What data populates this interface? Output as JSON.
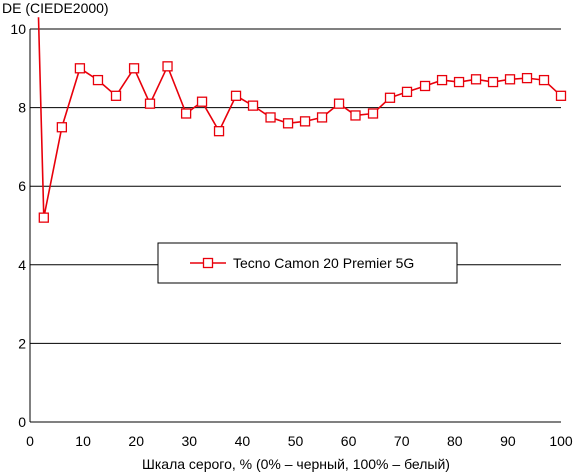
{
  "chart_data": {
    "type": "line",
    "ylabel": "DE (CIEDE2000)",
    "xlabel": "Шкала серого, % (0% – черный, 100% – белый)",
    "xlim": [
      0,
      100
    ],
    "ylim": [
      0,
      10
    ],
    "x_ticks": [
      "0",
      "10",
      "20",
      "30",
      "40",
      "50",
      "60",
      "70",
      "80",
      "90",
      "100"
    ],
    "y_ticks": [
      "0",
      "2",
      "4",
      "6",
      "8",
      "10"
    ],
    "grid": "horizontal",
    "legend_position": "center",
    "series": [
      {
        "name": "Tecno Camon 20 Premier 5G",
        "color": "#e8000b",
        "marker": "square-open",
        "points": [
          [
            1.6,
            10.3
          ],
          [
            2.6,
            5.2
          ],
          [
            6.0,
            7.5
          ],
          [
            9.4,
            9.0
          ],
          [
            12.8,
            8.7
          ],
          [
            16.2,
            8.3
          ],
          [
            19.6,
            9.0
          ],
          [
            22.6,
            8.1
          ],
          [
            25.9,
            9.05
          ],
          [
            29.4,
            7.85
          ],
          [
            32.4,
            8.15
          ],
          [
            35.6,
            7.4
          ],
          [
            38.8,
            8.3
          ],
          [
            42.0,
            8.05
          ],
          [
            45.3,
            7.75
          ],
          [
            48.6,
            7.6
          ],
          [
            51.8,
            7.65
          ],
          [
            55.0,
            7.75
          ],
          [
            58.2,
            8.1
          ],
          [
            61.3,
            7.8
          ],
          [
            64.6,
            7.85
          ],
          [
            67.8,
            8.25
          ],
          [
            71.0,
            8.4
          ],
          [
            74.4,
            8.55
          ],
          [
            77.6,
            8.7
          ],
          [
            80.8,
            8.65
          ],
          [
            84.0,
            8.72
          ],
          [
            87.2,
            8.65
          ],
          [
            90.4,
            8.72
          ],
          [
            93.6,
            8.75
          ],
          [
            96.8,
            8.7
          ],
          [
            100.0,
            8.3
          ]
        ]
      }
    ]
  }
}
